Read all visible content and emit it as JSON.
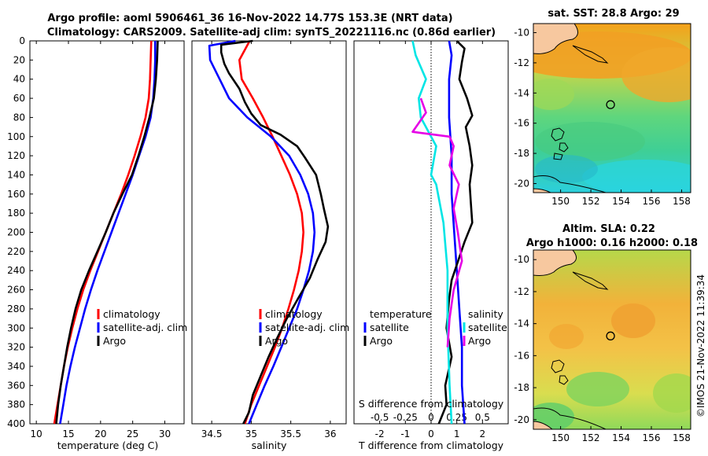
{
  "title": {
    "line1": "Argo profile: aoml 5906461_36 16-Nov-2022 14.77S 153.3E (NRT data)",
    "line2": "Climatology: CARS2009. Satellite-adj clim: synTS_20221116.nc (0.86d earlier)"
  },
  "stamp": "©IMOS 21-Nov-2022 11:39:34",
  "colors": {
    "clim": "#ff0000",
    "sat": "#0000ff",
    "argo": "#000000",
    "sal_sat": "#00e5e5",
    "sal_argo": "#e600e6"
  },
  "chart_data": [
    {
      "type": "line",
      "name": "temperature-profile",
      "xlabel": "temperature (deg C)",
      "xlim": [
        9,
        33
      ],
      "ylim": [
        0,
        400
      ],
      "yreversed": true,
      "xticks": [
        10,
        15,
        20,
        25,
        30
      ],
      "yticks": [
        0,
        20,
        40,
        60,
        80,
        100,
        120,
        140,
        160,
        180,
        200,
        220,
        240,
        260,
        280,
        300,
        320,
        340,
        360,
        380,
        400
      ],
      "legend": [
        "climatology",
        "satellite-adj. clim",
        "Argo"
      ],
      "series": [
        {
          "name": "climatology",
          "color": "clim",
          "points": [
            [
              27.9,
              0
            ],
            [
              27.8,
              20
            ],
            [
              27.7,
              40
            ],
            [
              27.5,
              60
            ],
            [
              27.0,
              80
            ],
            [
              26.2,
              100
            ],
            [
              25.3,
              120
            ],
            [
              24.3,
              140
            ],
            [
              23.2,
              160
            ],
            [
              22.0,
              180
            ],
            [
              20.8,
              200
            ],
            [
              19.6,
              220
            ],
            [
              18.4,
              240
            ],
            [
              17.3,
              260
            ],
            [
              16.4,
              280
            ],
            [
              15.6,
              300
            ],
            [
              14.9,
              320
            ],
            [
              14.3,
              340
            ],
            [
              13.8,
              360
            ],
            [
              13.3,
              380
            ],
            [
              12.8,
              400
            ]
          ]
        },
        {
          "name": "satellite",
          "color": "sat",
          "points": [
            [
              28.5,
              0
            ],
            [
              28.5,
              20
            ],
            [
              28.4,
              40
            ],
            [
              28.2,
              60
            ],
            [
              27.8,
              80
            ],
            [
              27.0,
              100
            ],
            [
              26.0,
              120
            ],
            [
              25.0,
              140
            ],
            [
              23.9,
              160
            ],
            [
              22.8,
              180
            ],
            [
              21.7,
              200
            ],
            [
              20.6,
              220
            ],
            [
              19.5,
              240
            ],
            [
              18.5,
              260
            ],
            [
              17.6,
              280
            ],
            [
              16.8,
              300
            ],
            [
              16.0,
              320
            ],
            [
              15.3,
              340
            ],
            [
              14.7,
              360
            ],
            [
              14.2,
              380
            ],
            [
              13.7,
              400
            ]
          ]
        },
        {
          "name": "argo",
          "color": "argo",
          "points": [
            [
              28.9,
              0
            ],
            [
              28.8,
              20
            ],
            [
              28.6,
              40
            ],
            [
              28.3,
              60
            ],
            [
              27.6,
              80
            ],
            [
              26.8,
              100
            ],
            [
              25.9,
              120
            ],
            [
              24.9,
              140
            ],
            [
              23.4,
              160
            ],
            [
              22.0,
              180
            ],
            [
              20.8,
              200
            ],
            [
              19.5,
              220
            ],
            [
              18.2,
              240
            ],
            [
              17.0,
              260
            ],
            [
              16.1,
              280
            ],
            [
              15.4,
              300
            ],
            [
              14.8,
              320
            ],
            [
              14.3,
              340
            ],
            [
              13.8,
              360
            ],
            [
              13.4,
              380
            ],
            [
              13.1,
              400
            ]
          ]
        }
      ]
    },
    {
      "type": "line",
      "name": "salinity-profile",
      "xlabel": "salinity",
      "xlim": [
        34.25,
        36.2
      ],
      "ylim": [
        0,
        400
      ],
      "yreversed": true,
      "xticks": [
        34.5,
        35,
        35.5,
        36
      ],
      "legend": [
        "climatology",
        "satellite-adj. clim",
        "Argo"
      ],
      "series": [
        {
          "name": "climatology",
          "color": "clim",
          "points": [
            [
              34.98,
              0
            ],
            [
              34.85,
              20
            ],
            [
              34.88,
              40
            ],
            [
              35.02,
              60
            ],
            [
              35.15,
              80
            ],
            [
              35.27,
              100
            ],
            [
              35.38,
              120
            ],
            [
              35.49,
              140
            ],
            [
              35.58,
              160
            ],
            [
              35.64,
              180
            ],
            [
              35.66,
              200
            ],
            [
              35.64,
              220
            ],
            [
              35.6,
              240
            ],
            [
              35.54,
              260
            ],
            [
              35.47,
              280
            ],
            [
              35.39,
              300
            ],
            [
              35.3,
              320
            ],
            [
              35.2,
              340
            ],
            [
              35.1,
              360
            ],
            [
              35.0,
              380
            ],
            [
              34.92,
              400
            ]
          ]
        },
        {
          "name": "satellite",
          "color": "sat",
          "points": [
            [
              34.8,
              0
            ],
            [
              34.47,
              5
            ],
            [
              34.48,
              20
            ],
            [
              34.6,
              40
            ],
            [
              34.72,
              60
            ],
            [
              34.95,
              80
            ],
            [
              35.25,
              100
            ],
            [
              35.48,
              120
            ],
            [
              35.62,
              140
            ],
            [
              35.72,
              160
            ],
            [
              35.78,
              180
            ],
            [
              35.8,
              200
            ],
            [
              35.78,
              220
            ],
            [
              35.73,
              240
            ],
            [
              35.66,
              260
            ],
            [
              35.58,
              280
            ],
            [
              35.48,
              300
            ],
            [
              35.38,
              320
            ],
            [
              35.28,
              340
            ],
            [
              35.17,
              360
            ],
            [
              35.07,
              380
            ],
            [
              34.97,
              400
            ]
          ]
        },
        {
          "name": "argo",
          "color": "argo",
          "points": [
            [
              35.02,
              0
            ],
            [
              34.62,
              4
            ],
            [
              34.62,
              12
            ],
            [
              34.66,
              24
            ],
            [
              34.72,
              34
            ],
            [
              34.85,
              50
            ],
            [
              34.92,
              64
            ],
            [
              35.0,
              76
            ],
            [
              35.12,
              88
            ],
            [
              35.37,
              98
            ],
            [
              35.58,
              110
            ],
            [
              35.68,
              122
            ],
            [
              35.82,
              140
            ],
            [
              35.88,
              160
            ],
            [
              35.92,
              176
            ],
            [
              35.97,
              194
            ],
            [
              35.94,
              210
            ],
            [
              35.84,
              228
            ],
            [
              35.74,
              248
            ],
            [
              35.6,
              268
            ],
            [
              35.45,
              290
            ],
            [
              35.33,
              310
            ],
            [
              35.22,
              330
            ],
            [
              35.12,
              350
            ],
            [
              35.02,
              370
            ],
            [
              34.97,
              388
            ],
            [
              34.9,
              400
            ]
          ]
        }
      ]
    },
    {
      "type": "line",
      "name": "difference-profile",
      "xlabel": "T difference from climatology",
      "xlabel_top": "S difference from climatology",
      "xlim": [
        -3,
        3
      ],
      "slim": [
        -0.75,
        0.75
      ],
      "ylim": [
        0,
        400
      ],
      "yreversed": true,
      "xticks": [
        -2,
        -1,
        0,
        1,
        2
      ],
      "sticks": [
        -0.5,
        -0.25,
        0,
        0.25,
        0.5
      ],
      "sticklabels": [
        "-0.5",
        "-0.25",
        "0",
        "0.25",
        "0.5"
      ],
      "legend_temperature": {
        "header": "temperature",
        "items": [
          "satellite",
          "Argo"
        ]
      },
      "legend_salinity": {
        "header": "salinity",
        "items": [
          "satellite",
          "Argo"
        ]
      },
      "series_T": [
        {
          "name": "T satellite",
          "color": "sat",
          "points": [
            [
              0.7,
              0
            ],
            [
              0.8,
              15
            ],
            [
              0.7,
              40
            ],
            [
              0.7,
              80
            ],
            [
              0.8,
              120
            ],
            [
              0.8,
              160
            ],
            [
              0.9,
              200
            ],
            [
              1.0,
              240
            ],
            [
              1.1,
              280
            ],
            [
              1.2,
              320
            ],
            [
              1.2,
              360
            ],
            [
              1.3,
              400
            ]
          ]
        },
        {
          "name": "T argo",
          "color": "argo",
          "points": [
            [
              1.0,
              0
            ],
            [
              1.3,
              8
            ],
            [
              1.2,
              22
            ],
            [
              1.1,
              40
            ],
            [
              1.4,
              60
            ],
            [
              1.6,
              78
            ],
            [
              1.35,
              90
            ],
            [
              1.5,
              110
            ],
            [
              1.6,
              130
            ],
            [
              1.5,
              150
            ],
            [
              1.55,
              170
            ],
            [
              1.6,
              190
            ],
            [
              1.3,
              210
            ],
            [
              1.05,
              230
            ],
            [
              0.8,
              250
            ],
            [
              0.7,
              270
            ],
            [
              0.6,
              300
            ],
            [
              0.8,
              330
            ],
            [
              0.55,
              360
            ],
            [
              0.6,
              380
            ],
            [
              0.3,
              400
            ]
          ]
        }
      ],
      "series_S": [
        {
          "name": "S satellite",
          "color": "sal_sat",
          "points": [
            [
              -0.18,
              0
            ],
            [
              -0.15,
              15
            ],
            [
              -0.05,
              40
            ],
            [
              -0.12,
              60
            ],
            [
              -0.1,
              80
            ],
            [
              0.05,
              110
            ],
            [
              0.0,
              140
            ],
            [
              0.05,
              150
            ],
            [
              0.12,
              190
            ],
            [
              0.16,
              240
            ],
            [
              0.16,
              300
            ],
            [
              0.18,
              360
            ],
            [
              0.2,
              400
            ]
          ]
        },
        {
          "name": "S argo",
          "color": "sal_argo",
          "points": [
            [
              -0.1,
              60
            ],
            [
              -0.05,
              75
            ],
            [
              -0.18,
              95
            ],
            [
              0.18,
              100
            ],
            [
              0.22,
              110
            ],
            [
              0.18,
              130
            ],
            [
              0.27,
              150
            ],
            [
              0.22,
              175
            ],
            [
              0.26,
              200
            ],
            [
              0.3,
              230
            ],
            [
              0.22,
              260
            ],
            [
              0.18,
              290
            ],
            [
              0.16,
              320
            ]
          ]
        }
      ]
    },
    {
      "type": "heatmap",
      "name": "sst-map",
      "title": "sat. SST: 28.8 Argo: 29",
      "xlim": [
        148.2,
        158.6
      ],
      "ylim": [
        -20.6,
        -9.4
      ],
      "xticks": [
        150,
        152,
        154,
        156,
        158
      ],
      "yticks": [
        -10,
        -12,
        -14,
        -16,
        -18,
        -20
      ],
      "profile_location": [
        153.3,
        -14.77
      ]
    },
    {
      "type": "heatmap",
      "name": "sla-map",
      "title1": "Altim. SLA: 0.22",
      "title2": "Argo h1000: 0.16 h2000: 0.18",
      "xlim": [
        148.2,
        158.6
      ],
      "ylim": [
        -20.6,
        -9.4
      ],
      "xticks": [
        150,
        152,
        154,
        156,
        158
      ],
      "yticks": [
        -10,
        -12,
        -14,
        -16,
        -18,
        -20
      ],
      "profile_location": [
        153.3,
        -14.77
      ]
    }
  ]
}
